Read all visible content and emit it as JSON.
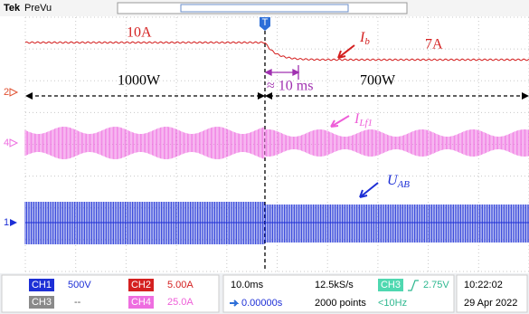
{
  "header": {
    "brand": "Tek",
    "mode": "PreVu"
  },
  "markers": {
    "trigger": "T",
    "ch2": "2",
    "ch4": "4",
    "ch1": "1"
  },
  "annotations": {
    "current_before": "10A",
    "ib": {
      "symbol": "I",
      "subscript": "b"
    },
    "current_after": "7A",
    "power_before": "1000W",
    "delay": "≈ 10 ms",
    "power_after": "700W",
    "ilf": {
      "symbol": "I",
      "subscript": "Lf1"
    },
    "uab": {
      "symbol": "U",
      "subscript": "AB"
    }
  },
  "channels": [
    {
      "name": "CH1",
      "scale": "500V"
    },
    {
      "name": "CH2",
      "scale": "5.00A"
    },
    {
      "name": "CH3",
      "scale": "--"
    },
    {
      "name": "CH4",
      "scale": "25.0A"
    }
  ],
  "horizontal": {
    "scale": "10.0ms",
    "position": "0.00000s"
  },
  "acquisition": {
    "rate": "12.5kS/s",
    "length": "2000 points"
  },
  "trigger": {
    "source": "CH3",
    "level": "2.75V",
    "frequency": "<10Hz"
  },
  "clock": {
    "time": "10:22:02",
    "date": "29 Apr 2022"
  }
}
